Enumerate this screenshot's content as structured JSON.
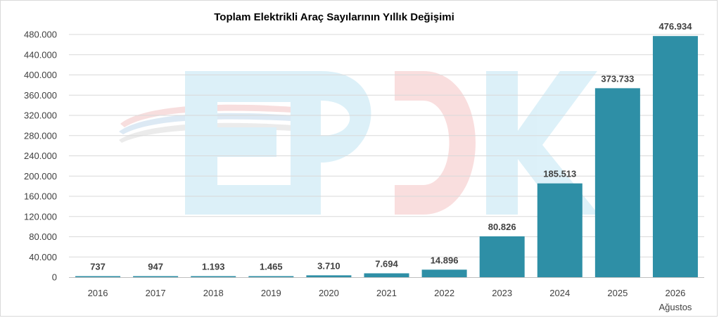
{
  "chart_data": {
    "type": "bar",
    "title": "Toplam Elektrikli Araç Sayılarının Yıllık Değişimi",
    "xlabel": "",
    "ylabel": "",
    "categories": [
      "2016",
      "2017",
      "2018",
      "2019",
      "2020",
      "2021",
      "2022",
      "2023",
      "2024",
      "2025",
      "2026"
    ],
    "category_sublabels": [
      "",
      "",
      "",
      "",
      "",
      "",
      "",
      "",
      "",
      "",
      "Ağustos"
    ],
    "values": [
      737,
      947,
      1193,
      1465,
      3710,
      7694,
      14896,
      80826,
      185513,
      373733,
      476934
    ],
    "data_labels": [
      "737",
      "947",
      "1.193",
      "1.465",
      "3.710",
      "7.694",
      "14.896",
      "80.826",
      "185.513",
      "373.733",
      "476.934"
    ],
    "ylim": [
      0,
      480000
    ],
    "y_ticks": [
      0,
      40000,
      80000,
      120000,
      160000,
      200000,
      240000,
      280000,
      320000,
      360000,
      400000,
      440000,
      480000
    ],
    "y_tick_labels": [
      "0",
      "40.000",
      "80.000",
      "120.000",
      "160.000",
      "200.000",
      "240.000",
      "280.000",
      "320.000",
      "360.000",
      "400.000",
      "440.000",
      "480.000"
    ],
    "grid": true,
    "legend": "none",
    "colors": {
      "bar": "#2e8fa6",
      "grid": "#d9d9d9",
      "text": "#404040"
    }
  },
  "watermark": {
    "text": "EPDK"
  }
}
